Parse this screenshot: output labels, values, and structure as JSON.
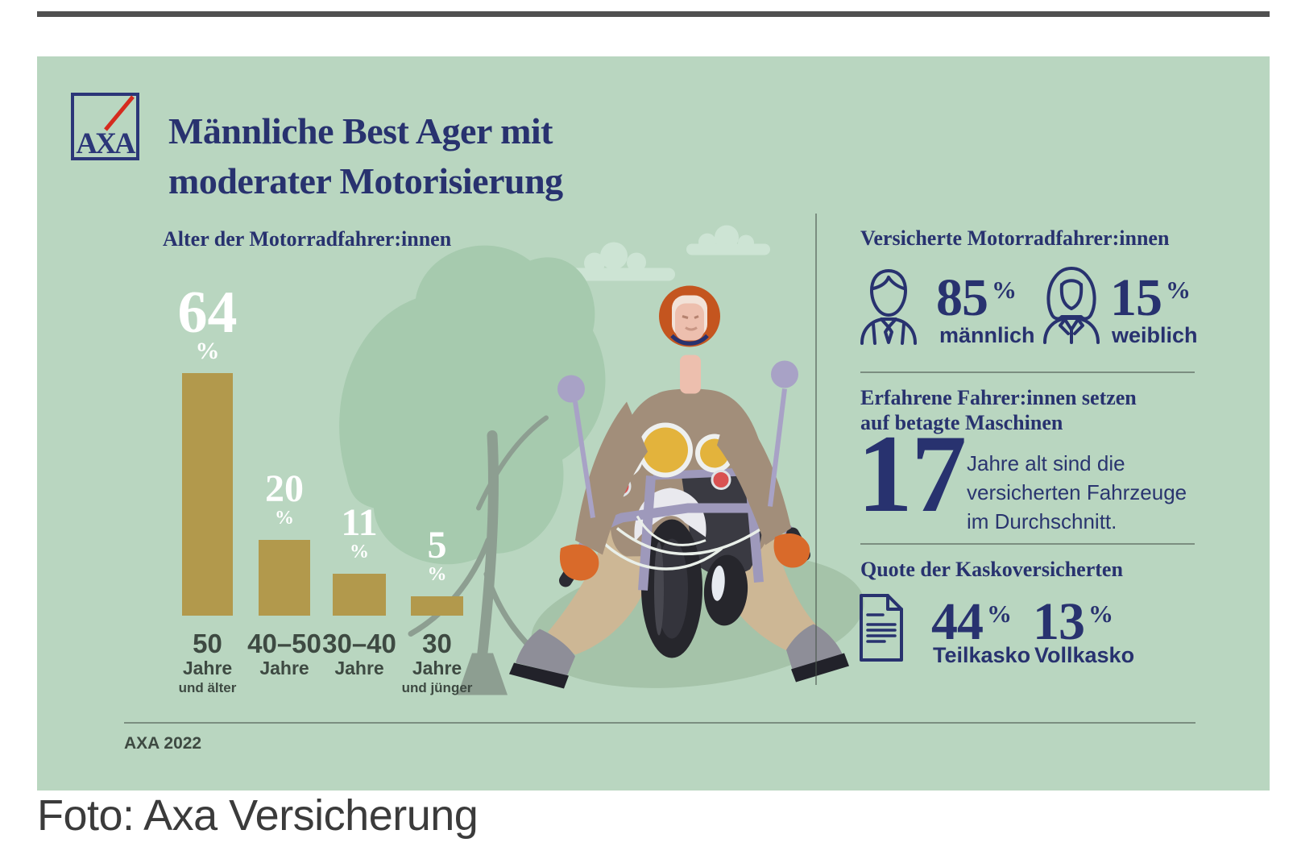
{
  "page": {
    "caption": "Foto: Axa Versicherung"
  },
  "infographic": {
    "logo_text": "AXA",
    "title": "Männliche Best Ager mit\nmoderater Motorisierung",
    "source": "AXA 2022"
  },
  "age_chart": {
    "heading": "Alter der Motorradfahrer:innen",
    "bars": [
      {
        "value": "64",
        "unit": "%",
        "age": "50",
        "age_unit": "Jahre",
        "age_note": "und älter"
      },
      {
        "value": "20",
        "unit": "%",
        "age": "40–50",
        "age_unit": "Jahre",
        "age_note": ""
      },
      {
        "value": "11",
        "unit": "%",
        "age": "30–40",
        "age_unit": "Jahre",
        "age_note": ""
      },
      {
        "value": "5",
        "unit": "%",
        "age": "30",
        "age_unit": "Jahre",
        "age_note": "und jünger"
      }
    ]
  },
  "insured": {
    "heading": "Versicherte Motorradfahrer:innen",
    "male_value": "85",
    "male_unit": "%",
    "male_label": "männlich",
    "female_value": "15",
    "female_unit": "%",
    "female_label": "weiblich"
  },
  "machines": {
    "heading": "Erfahrene Fahrer:innen setzen\nauf betagte Maschinen",
    "value": "17",
    "description": "Jahre alt sind die\nversicherten Fahrzeuge\nim Durchschnitt."
  },
  "kasko": {
    "heading": "Quote der Kaskoversicherten",
    "teil_value": "44",
    "teil_unit": "%",
    "teil_label": "Teilkasko",
    "voll_value": "13",
    "voll_unit": "%",
    "voll_label": "Vollkasko"
  },
  "chart_data": {
    "type": "bar",
    "title": "Alter der Motorradfahrer:innen",
    "categories": [
      "50 Jahre und älter",
      "40–50 Jahre",
      "30–40 Jahre",
      "30 Jahre und jünger"
    ],
    "values": [
      64,
      20,
      11,
      5
    ],
    "unit": "%",
    "bar_color": "#b2994c",
    "value_label_color": "#ffffff",
    "ylim": [
      0,
      70
    ],
    "grid": false,
    "legend": false
  },
  "colors": {
    "panel_green": "#b9d6c0",
    "navy": "#28326f",
    "gold": "#b2994c",
    "top_rule": "#505050",
    "axis_text": "#3e4a42",
    "logo_red": "#d52b1e"
  }
}
